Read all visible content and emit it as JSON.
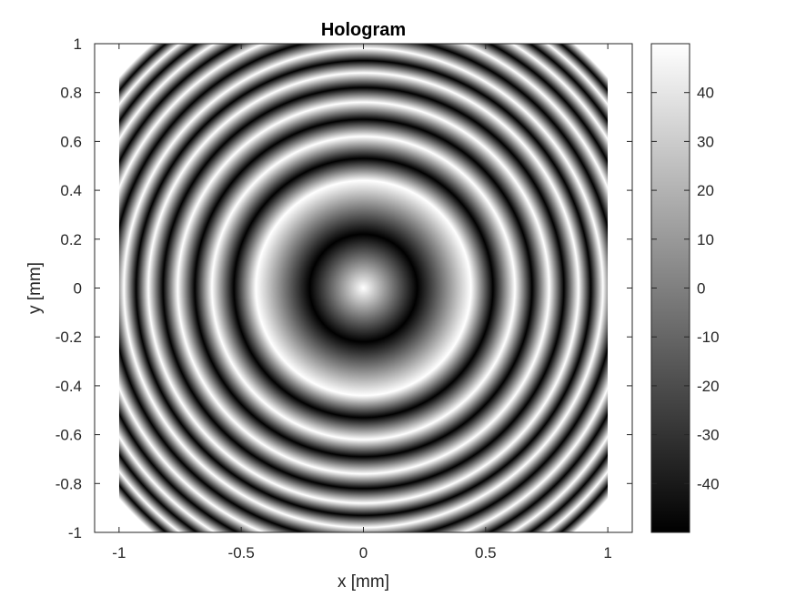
{
  "chart_data": {
    "type": "heatmap",
    "title": "Hologram",
    "xlabel": "x [mm]",
    "ylabel": "y [mm]",
    "xlim": [
      -1.1,
      1.1
    ],
    "ylim": [
      -1,
      1
    ],
    "x_image_extent": [
      -1,
      1
    ],
    "y_image_extent": [
      -1,
      1
    ],
    "xticks": [
      -1,
      -0.5,
      0,
      0.5,
      1
    ],
    "xtick_labels": [
      "-1",
      "-0.5",
      "0",
      "0.5",
      "1"
    ],
    "yticks": [
      -1,
      -0.8,
      -0.6,
      -0.4,
      -0.2,
      0,
      0.2,
      0.4,
      0.6,
      0.8,
      1
    ],
    "ytick_labels": [
      "-1",
      "-0.8",
      "-0.6",
      "-0.4",
      "-0.2",
      "0",
      "0.2",
      "0.4",
      "0.6",
      "0.8",
      "1"
    ],
    "pattern": "concentric rings (Fresnel zone pattern), maximum at center",
    "ring_radii_bright_mm": [
      0,
      0.44,
      0.62,
      0.76,
      0.88,
      0.98,
      1.08,
      1.17,
      1.25,
      1.32
    ],
    "colormap": "gray",
    "colorbar": {
      "clim": [
        -50,
        50
      ],
      "ticks": [
        -40,
        -30,
        -20,
        -10,
        0,
        10,
        20,
        30,
        40
      ],
      "tick_labels": [
        "-40",
        "-30",
        "-20",
        "-10",
        "0",
        "10",
        "20",
        "30",
        "40"
      ],
      "placement": "right"
    },
    "grid": false
  }
}
